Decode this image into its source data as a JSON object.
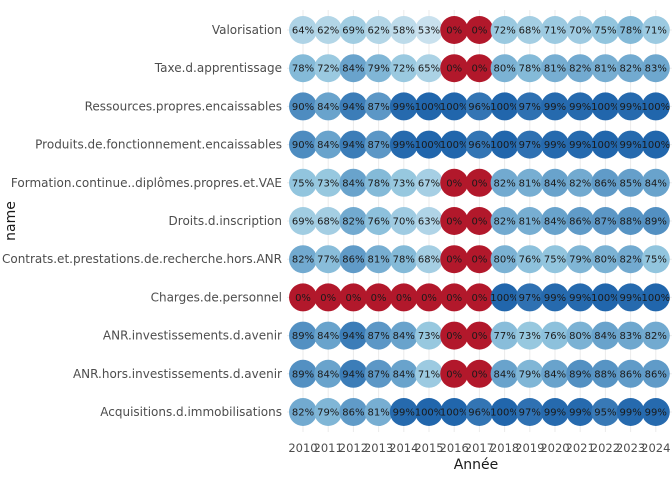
{
  "chart_data": {
    "type": "heatmap",
    "xlabel": "Année",
    "ylabel": "name",
    "x": [
      "2010",
      "2011",
      "2012",
      "2013",
      "2014",
      "2015",
      "2016",
      "2017",
      "2018",
      "2019",
      "2020",
      "2021",
      "2022",
      "2023",
      "2024"
    ],
    "rows": [
      {
        "name": "Valorisation",
        "values": [
          64,
          62,
          69,
          62,
          58,
          53,
          0,
          0,
          72,
          68,
          71,
          70,
          75,
          78,
          71
        ]
      },
      {
        "name": "Taxe.d.apprentissage",
        "values": [
          78,
          72,
          84,
          79,
          72,
          65,
          0,
          0,
          80,
          78,
          81,
          82,
          81,
          82,
          83
        ]
      },
      {
        "name": "Ressources.propres.encaissables",
        "values": [
          90,
          84,
          94,
          87,
          99,
          100,
          100,
          96,
          100,
          97,
          99,
          99,
          100,
          99,
          100
        ]
      },
      {
        "name": "Produits.de.fonctionnement.encaissables",
        "values": [
          90,
          84,
          94,
          87,
          99,
          100,
          100,
          96,
          100,
          97,
          99,
          99,
          100,
          99,
          100
        ]
      },
      {
        "name": "Formation.continue..diplômes.propres.et.VAE",
        "values": [
          75,
          73,
          84,
          78,
          73,
          67,
          0,
          0,
          82,
          81,
          84,
          82,
          86,
          85,
          84
        ]
      },
      {
        "name": "Droits.d.inscription",
        "values": [
          69,
          68,
          82,
          76,
          70,
          63,
          0,
          0,
          82,
          81,
          84,
          86,
          87,
          88,
          89
        ]
      },
      {
        "name": "Contrats.et.prestations.de.recherche.hors.ANR",
        "values": [
          82,
          77,
          86,
          81,
          78,
          68,
          0,
          0,
          80,
          76,
          75,
          79,
          80,
          82,
          75
        ]
      },
      {
        "name": "Charges.de.personnel",
        "values": [
          0,
          0,
          0,
          0,
          0,
          0,
          0,
          0,
          100,
          97,
          99,
          99,
          100,
          99,
          100
        ]
      },
      {
        "name": "ANR.investissements.d.avenir",
        "values": [
          89,
          84,
          94,
          87,
          84,
          73,
          0,
          0,
          77,
          73,
          76,
          80,
          84,
          83,
          82
        ]
      },
      {
        "name": "ANR.hors.investissements.d.avenir",
        "values": [
          89,
          84,
          94,
          87,
          84,
          71,
          0,
          0,
          84,
          79,
          84,
          89,
          88,
          86,
          86
        ]
      },
      {
        "name": "Acquisitions.d.immobilisations",
        "values": [
          82,
          79,
          86,
          81,
          99,
          100,
          100,
          96,
          100,
          97,
          99,
          99,
          95,
          99,
          99
        ]
      }
    ],
    "value_suffix": "%",
    "colors": {
      "zero": "#b2182b",
      "low": "#d1e5f0",
      "mid": "#92c5de",
      "high": "#2166ac"
    },
    "grid": true,
    "legend": "none"
  }
}
